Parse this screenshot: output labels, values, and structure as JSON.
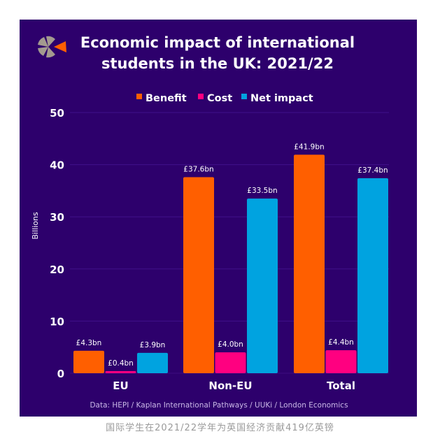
{
  "chart_data": {
    "type": "bar",
    "title_line1": "Economic impact of international",
    "title_line2": "students in the UK: 2021/22",
    "categories": [
      "EU",
      "Non-EU",
      "Total"
    ],
    "series": [
      {
        "name": "Benefit",
        "color": "#ff5f00",
        "values": [
          4.3,
          37.6,
          41.9
        ],
        "labels": [
          "£4.3bn",
          "£37.6bn",
          "£41.9bn"
        ]
      },
      {
        "name": "Cost",
        "color": "#ff0080",
        "values": [
          0.4,
          4.0,
          4.4
        ],
        "labels": [
          "£0.4bn",
          "£4.0bn",
          "£4.4bn"
        ]
      },
      {
        "name": "Net impact",
        "color": "#00a3e0",
        "values": [
          3.9,
          33.5,
          37.4
        ],
        "labels": [
          "£3.9bn",
          "£33.5bn",
          "£37.4bn"
        ]
      }
    ],
    "ylabel": "Billions",
    "xlabel": "",
    "ylim": [
      0,
      50
    ],
    "yticks": [
      "0",
      "10",
      "20",
      "30",
      "40",
      "50"
    ],
    "legend_position": "top-center",
    "grid": true,
    "source": "Data: HEPI / Kaplan International Pathways / UUKi / London Economics"
  },
  "caption": "国际学生在2021/22学年为英国经济贡献419亿英镑"
}
